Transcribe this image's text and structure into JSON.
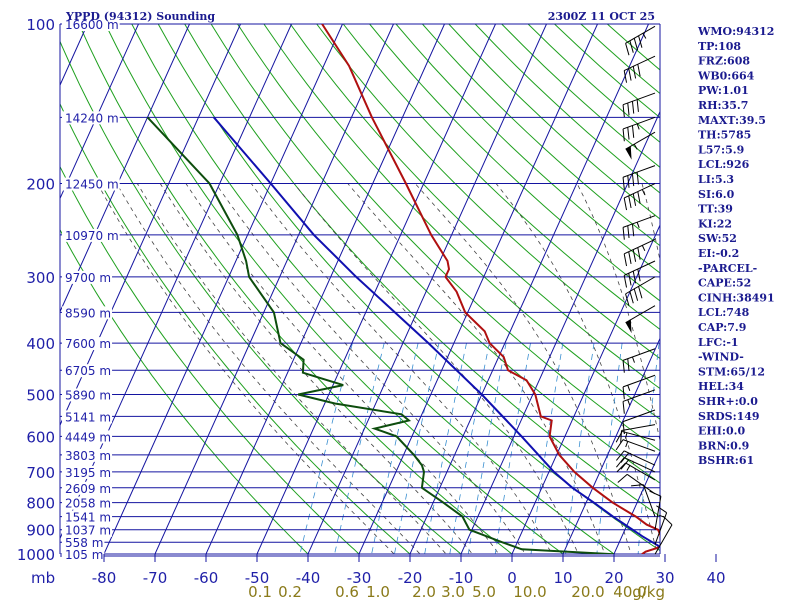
{
  "chart_data": {
    "type": "skew-t",
    "title_left": "YPPD (94312) Sounding",
    "title_right": "2300Z 11 OCT 25",
    "pressure_unit_label": "mb",
    "pressure_ticks": [
      "100",
      "200",
      "300",
      "400",
      "500",
      "600",
      "700",
      "800",
      "900",
      "1000"
    ],
    "pressure_ticks_values": [
      100,
      200,
      300,
      400,
      500,
      600,
      700,
      800,
      900,
      1000
    ],
    "height_levels": [
      {
        "p": 100,
        "label": "16600 m"
      },
      {
        "p": 150,
        "label": "14240 m"
      },
      {
        "p": 200,
        "label": "12450 m"
      },
      {
        "p": 250,
        "label": "10970 m"
      },
      {
        "p": 300,
        "label": "9700 m"
      },
      {
        "p": 350,
        "label": "8590 m"
      },
      {
        "p": 400,
        "label": "7600 m"
      },
      {
        "p": 450,
        "label": "6705 m"
      },
      {
        "p": 500,
        "label": "5890 m"
      },
      {
        "p": 550,
        "label": "5141 m"
      },
      {
        "p": 600,
        "label": "4449 m"
      },
      {
        "p": 650,
        "label": "3803 m"
      },
      {
        "p": 700,
        "label": "3195 m"
      },
      {
        "p": 750,
        "label": "2609 m"
      },
      {
        "p": 800,
        "label": "2058 m"
      },
      {
        "p": 850,
        "label": "1541 m"
      },
      {
        "p": 900,
        "label": "1037 m"
      },
      {
        "p": 950,
        "label": "558 m"
      },
      {
        "p": 1000,
        "label": "105 m"
      }
    ],
    "temperature_ticks": [
      "-80",
      "-70",
      "-60",
      "-50",
      "-40",
      "-30",
      "-20",
      "-10",
      "0",
      "10",
      "20",
      "30",
      "40"
    ],
    "temperature_ticks_values": [
      -80,
      -70,
      -60,
      -50,
      -40,
      -30,
      -20,
      -10,
      0,
      10,
      20,
      30,
      40
    ],
    "mixing_ratio_labels": [
      "0.1",
      "0.2",
      "0.6",
      "1.0",
      "2.0",
      "3.0",
      "5.0",
      "10.0",
      "20.0",
      "40.0"
    ],
    "mixing_ratio_unit": "g/kg",
    "series": [
      {
        "name": "Temperature",
        "color": "#b01010",
        "points": [
          {
            "p": 1001,
            "t": 25.5
          },
          {
            "p": 990,
            "t": 26.0
          },
          {
            "p": 975,
            "t": 27.8
          },
          {
            "p": 955,
            "t": 29.0
          },
          {
            "p": 935,
            "t": 28.0
          },
          {
            "p": 900,
            "t": 26.5
          },
          {
            "p": 880,
            "t": 23.8
          },
          {
            "p": 850,
            "t": 21.0
          },
          {
            "p": 800,
            "t": 15.2
          },
          {
            "p": 750,
            "t": 10.0
          },
          {
            "p": 700,
            "t": 5.0
          },
          {
            "p": 650,
            "t": 0.5
          },
          {
            "p": 600,
            "t": -3.0
          },
          {
            "p": 560,
            "t": -4.0
          },
          {
            "p": 550,
            "t": -6.5
          },
          {
            "p": 500,
            "t": -9.5
          },
          {
            "p": 470,
            "t": -12.5
          },
          {
            "p": 450,
            "t": -17.0
          },
          {
            "p": 425,
            "t": -19.0
          },
          {
            "p": 400,
            "t": -23.0
          },
          {
            "p": 380,
            "t": -25.0
          },
          {
            "p": 350,
            "t": -30.5
          },
          {
            "p": 320,
            "t": -34.0
          },
          {
            "p": 300,
            "t": -37.5
          },
          {
            "p": 290,
            "t": -37.5
          },
          {
            "p": 280,
            "t": -38.5
          },
          {
            "p": 250,
            "t": -44.0
          },
          {
            "p": 200,
            "t": -53.5
          },
          {
            "p": 150,
            "t": -66.0
          },
          {
            "p": 120,
            "t": -75.0
          },
          {
            "p": 100,
            "t": -84.0
          }
        ]
      },
      {
        "name": "Dewpoint",
        "color": "#0d4d0d",
        "points": [
          {
            "p": 1001,
            "t": 20.0
          },
          {
            "p": 980,
            "t": 1.5
          },
          {
            "p": 950,
            "t": -3.0
          },
          {
            "p": 900,
            "t": -10.5
          },
          {
            "p": 850,
            "t": -13.0
          },
          {
            "p": 800,
            "t": -18.0
          },
          {
            "p": 750,
            "t": -23.5
          },
          {
            "p": 700,
            "t": -24.5
          },
          {
            "p": 680,
            "t": -25.5
          },
          {
            "p": 650,
            "t": -28.0
          },
          {
            "p": 600,
            "t": -33.0
          },
          {
            "p": 580,
            "t": -38.0
          },
          {
            "p": 560,
            "t": -32.0
          },
          {
            "p": 545,
            "t": -34.0
          },
          {
            "p": 520,
            "t": -48.0
          },
          {
            "p": 500,
            "t": -56.0
          },
          {
            "p": 480,
            "t": -48.0
          },
          {
            "p": 455,
            "t": -57.0
          },
          {
            "p": 430,
            "t": -58.0
          },
          {
            "p": 400,
            "t": -64.0
          },
          {
            "p": 350,
            "t": -68.0
          },
          {
            "p": 300,
            "t": -76.0
          },
          {
            "p": 280,
            "t": -78.0
          },
          {
            "p": 250,
            "t": -82.0
          },
          {
            "p": 200,
            "t": -92.0
          },
          {
            "p": 150,
            "t": -110.0
          }
        ]
      },
      {
        "name": "Parcel",
        "color": "#1010b0",
        "points": [
          {
            "p": 1001,
            "t": 31.5
          },
          {
            "p": 926,
            "t": 24.0
          },
          {
            "p": 850,
            "t": 16.5
          },
          {
            "p": 800,
            "t": 11.5
          },
          {
            "p": 750,
            "t": 6.0
          },
          {
            "p": 700,
            "t": 1.0
          },
          {
            "p": 600,
            "t": -8.5
          },
          {
            "p": 500,
            "t": -20.0
          },
          {
            "p": 400,
            "t": -35.0
          },
          {
            "p": 300,
            "t": -55.0
          },
          {
            "p": 250,
            "t": -67.0
          },
          {
            "p": 200,
            "t": -80.0
          },
          {
            "p": 150,
            "t": -97.0
          }
        ]
      }
    ],
    "wind_barbs": [
      {
        "p": 101,
        "dir": 300,
        "spd": 45
      },
      {
        "p": 115,
        "dir": 295,
        "spd": 40
      },
      {
        "p": 135,
        "dir": 290,
        "spd": 40
      },
      {
        "p": 150,
        "dir": 290,
        "spd": 35
      },
      {
        "p": 160,
        "dir": 300,
        "spd": 55
      },
      {
        "p": 185,
        "dir": 290,
        "spd": 40
      },
      {
        "p": 200,
        "dir": 295,
        "spd": 45
      },
      {
        "p": 230,
        "dir": 290,
        "spd": 35
      },
      {
        "p": 255,
        "dir": 295,
        "spd": 45
      },
      {
        "p": 280,
        "dir": 295,
        "spd": 40
      },
      {
        "p": 300,
        "dir": 300,
        "spd": 40
      },
      {
        "p": 340,
        "dir": 300,
        "spd": 50
      },
      {
        "p": 410,
        "dir": 290,
        "spd": 25
      },
      {
        "p": 460,
        "dir": 290,
        "spd": 15
      },
      {
        "p": 490,
        "dir": 290,
        "spd": 15
      },
      {
        "p": 535,
        "dir": 290,
        "spd": 10
      },
      {
        "p": 570,
        "dir": 280,
        "spd": 10
      },
      {
        "p": 610,
        "dir": 255,
        "spd": 15
      },
      {
        "p": 640,
        "dir": 250,
        "spd": 15
      },
      {
        "p": 680,
        "dir": 245,
        "spd": 20
      },
      {
        "p": 700,
        "dir": 245,
        "spd": 20
      },
      {
        "p": 725,
        "dir": 240,
        "spd": 15
      },
      {
        "p": 770,
        "dir": 235,
        "spd": 10
      },
      {
        "p": 850,
        "dir": 200,
        "spd": 10
      },
      {
        "p": 900,
        "dir": 170,
        "spd": 10
      },
      {
        "p": 960,
        "dir": 160,
        "spd": 15
      },
      {
        "p": 1001,
        "dir": 150,
        "spd": 10
      }
    ]
  },
  "indices": [
    {
      "id": "wmo",
      "text": "WMO:94312"
    },
    {
      "id": "tp",
      "text": "TP:108"
    },
    {
      "id": "frz",
      "text": "FRZ:608"
    },
    {
      "id": "wb0",
      "text": "WB0:664"
    },
    {
      "id": "pw",
      "text": "PW:1.01"
    },
    {
      "id": "rh",
      "text": "RH:35.7"
    },
    {
      "id": "maxt",
      "text": "MAXT:39.5"
    },
    {
      "id": "th",
      "text": "TH:5785"
    },
    {
      "id": "l57",
      "text": "L57:5.9"
    },
    {
      "id": "lcl",
      "text": "LCL:926"
    },
    {
      "id": "li",
      "text": "LI:5.3"
    },
    {
      "id": "si",
      "text": "SI:6.0"
    },
    {
      "id": "tt",
      "text": "TT:39"
    },
    {
      "id": "ki",
      "text": "KI:22"
    },
    {
      "id": "sw",
      "text": "SW:52"
    },
    {
      "id": "ei",
      "text": "EI:-0.2"
    },
    {
      "id": "parcel-header",
      "text": "-PARCEL-"
    },
    {
      "id": "cape",
      "text": "CAPE:52"
    },
    {
      "id": "cinh",
      "text": "CINH:38491"
    },
    {
      "id": "parcel-lcl",
      "text": "LCL:748"
    },
    {
      "id": "cap",
      "text": "CAP:7.9"
    },
    {
      "id": "lfc",
      "text": "LFC:-1"
    },
    {
      "id": "wind-header",
      "text": "-WIND-"
    },
    {
      "id": "stm",
      "text": "STM:65/12"
    },
    {
      "id": "hel",
      "text": "HEL:34"
    },
    {
      "id": "shr",
      "text": "SHR+:0.0"
    },
    {
      "id": "srds",
      "text": "SRDS:149"
    },
    {
      "id": "ehi",
      "text": "EHI:0.0"
    },
    {
      "id": "brn",
      "text": "BRN:0.9"
    },
    {
      "id": "bshr",
      "text": "BSHR:61"
    }
  ],
  "colors": {
    "isobar": "#1414a0",
    "isotherm": "#1414a0",
    "dry_adiabat": "#1fa01f",
    "moist_adiabat": "#444444",
    "mixing_ratio": "#3a8fd0",
    "temperature": "#b01010",
    "dewpoint": "#0d4d0d",
    "parcel": "#1010b0",
    "index_text": "#1b1b8f",
    "mixing_label": "#8a7a1a"
  }
}
